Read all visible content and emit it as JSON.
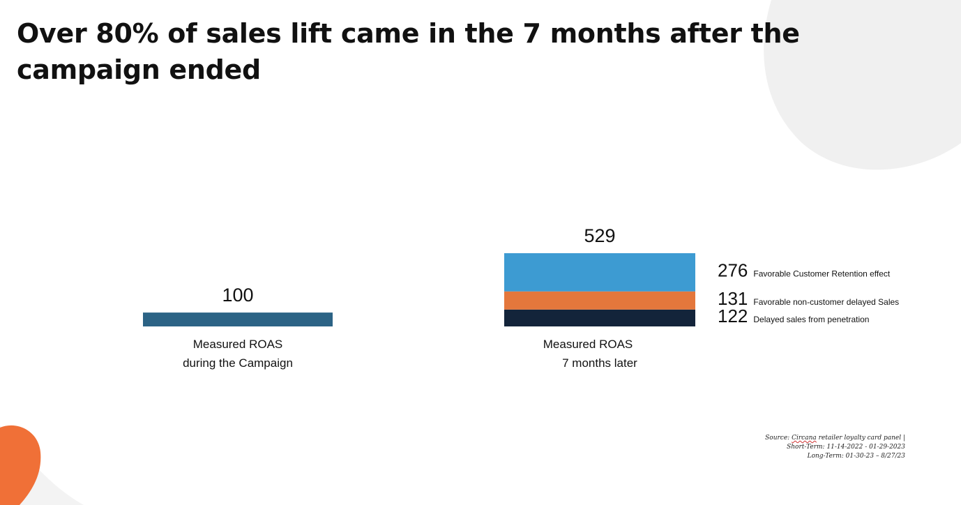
{
  "title": "Over 80% of sales lift came in the 7 months after the campaign ended",
  "colors": {
    "campaign_bar": "#2c6385",
    "retention": "#3d9bd2",
    "non_customer": "#e4773c",
    "penetration": "#13243a",
    "accent_blob": "#f07037",
    "bg_shape": "#f0f0f0"
  },
  "chart_data": {
    "type": "bar",
    "stacked": true,
    "title": "",
    "xlabel": "",
    "ylabel": "",
    "ylim": [
      0,
      529
    ],
    "grid": false,
    "legend": "right",
    "bars": [
      {
        "label_lines": [
          "Measured ROAS",
          "during the Campaign"
        ],
        "total": "100",
        "segments": [
          {
            "name": "",
            "value": 100,
            "color": "#2c6385"
          }
        ]
      },
      {
        "label_lines": [
          "Measured ROAS",
          "7 months later"
        ],
        "total": "529",
        "segments": [
          {
            "name": "Delayed sales from penetration",
            "value": 122,
            "color": "#13243a"
          },
          {
            "name": "Favorable non-customer delayed Sales",
            "value": 131,
            "color": "#e4773c"
          },
          {
            "name": "Favorable Customer Retention effect",
            "value": 276,
            "color": "#3d9bd2"
          }
        ]
      }
    ]
  },
  "source": {
    "prefix": "Source:",
    "name": "Circana",
    "rest": " retailer loyalty card panel |",
    "short_term": "Short-Term:  11-14-2022 - 01-29-2023",
    "long_term": "Long-Term:  01-30-23 – 8/27/23"
  }
}
